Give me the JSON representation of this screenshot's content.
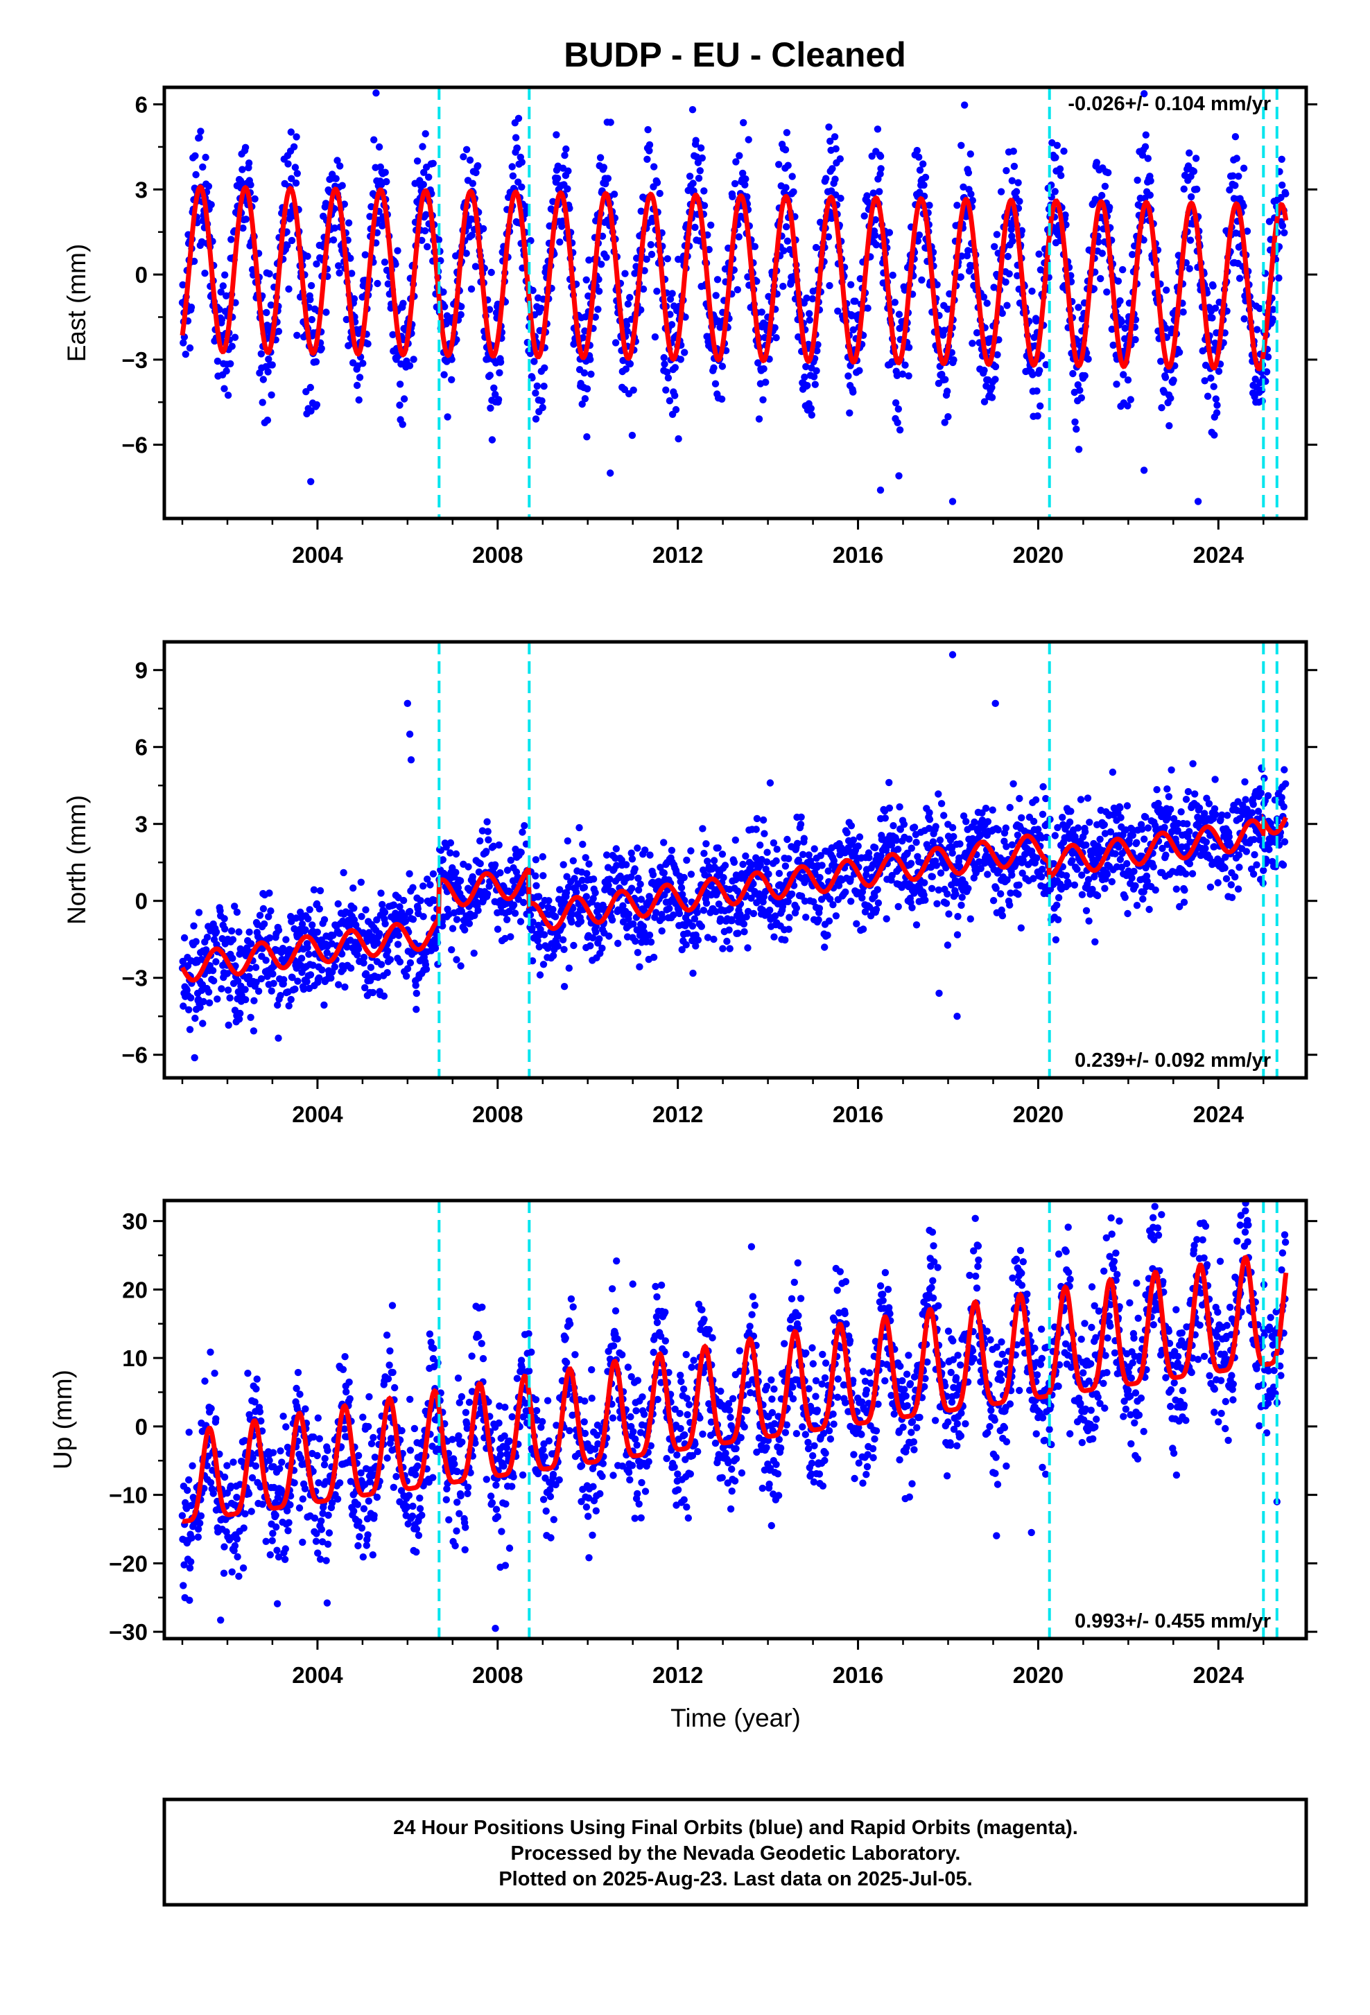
{
  "title": "BUDP  - EU - Cleaned",
  "x_axis_label": "Time (year)",
  "footer": [
    "24 Hour Positions Using Final Orbits (blue) and Rapid Orbits (magenta).",
    "Processed by the Nevada Geodetic Laboratory.",
    "Plotted on 2025-Aug-23. Last data on 2025-Jul-05."
  ],
  "colors": {
    "data_points": "#0000ff",
    "model_fit": "#ff0000",
    "breaks": "#00e5ee",
    "frame": "#000000"
  },
  "chart_data": [
    {
      "type": "scatter",
      "name": "east",
      "ylabel": "East (mm)",
      "rate_text": "-0.026+/- 0.104 mm/yr",
      "rate_position": "top-right",
      "xlim": [
        2000.6,
        2025.95
      ],
      "ylim": [
        -8.6,
        6.6
      ],
      "x_ticks": [
        "2004",
        "2008",
        "2012",
        "2016",
        "2020",
        "2024"
      ],
      "y_ticks": [
        "6",
        "3",
        "0",
        "-3",
        "-6"
      ],
      "y_tick_values": [
        6,
        3,
        0,
        -3,
        -6
      ],
      "break_years": [
        2006.7,
        2008.7,
        2020.25,
        2025.0,
        2025.3
      ],
      "data_span": [
        2001.0,
        2025.5
      ],
      "fit": {
        "annual_amplitude": 2.9,
        "annual_phase_peak": 0.4,
        "rate": -0.026,
        "offset": 0.2,
        "offsets": []
      },
      "scatter": {
        "sigma": 1.2,
        "seasonal_modulation": 1.0
      },
      "outliers": [
        [
          2003.85,
          -7.3
        ],
        [
          2010.5,
          -7.0
        ],
        [
          2018.1,
          -8.0
        ],
        [
          2023.55,
          -8.0
        ],
        [
          2005.3,
          6.4
        ],
        [
          2016.5,
          -7.6
        ],
        [
          2022.35,
          -6.9
        ]
      ]
    },
    {
      "type": "scatter",
      "name": "north",
      "ylabel": "North (mm)",
      "rate_text": "0.239+/- 0.092 mm/yr",
      "rate_position": "bottom-right",
      "xlim": [
        2000.6,
        2025.95
      ],
      "ylim": [
        -6.9,
        10.1
      ],
      "x_ticks": [
        "2004",
        "2008",
        "2012",
        "2016",
        "2020",
        "2024"
      ],
      "y_ticks": [
        "9",
        "6",
        "3",
        "0",
        "-3",
        "-6"
      ],
      "y_tick_values": [
        9,
        6,
        3,
        0,
        -3,
        -6
      ],
      "break_years": [
        2006.7,
        2008.7,
        2020.25,
        2025.0,
        2025.3
      ],
      "data_span": [
        2001.0,
        2025.5
      ],
      "fit": {
        "annual_amplitude": 0.55,
        "annual_phase_peak": 0.75,
        "rate": 0.239,
        "offset": -2.6,
        "offsets": [
          [
            2006.7,
            1.5
          ],
          [
            2008.7,
            -1.4
          ],
          [
            2020.25,
            -0.6
          ],
          [
            2025.0,
            0.5
          ]
        ]
      },
      "scatter": {
        "sigma": 1.0,
        "seasonal_modulation": 0.0
      },
      "outliers": [
        [
          2006.0,
          7.7
        ],
        [
          2006.05,
          6.5
        ],
        [
          2006.08,
          5.5
        ],
        [
          2018.1,
          9.6
        ],
        [
          2019.05,
          7.7
        ],
        [
          2014.05,
          4.6
        ],
        [
          2018.2,
          -4.5
        ],
        [
          2017.8,
          -3.6
        ]
      ]
    },
    {
      "type": "scatter",
      "name": "up",
      "ylabel": "Up (mm)",
      "rate_text": "0.993+/- 0.455 mm/yr",
      "rate_position": "bottom-right",
      "xlim": [
        2000.6,
        2025.95
      ],
      "ylim": [
        -31,
        33
      ],
      "x_ticks": [
        "2004",
        "2008",
        "2012",
        "2016",
        "2020",
        "2024"
      ],
      "y_ticks": [
        "30",
        "20",
        "10",
        "0",
        "-10",
        "-20",
        "-30"
      ],
      "y_tick_values": [
        30,
        20,
        10,
        0,
        -10,
        -20,
        -30
      ],
      "break_years": [
        2006.7,
        2008.7,
        2020.25,
        2025.0,
        2025.3
      ],
      "data_span": [
        2001.0,
        2025.5
      ],
      "fit": {
        "annual_amplitude": 6.5,
        "annual_phase_peak": 0.6,
        "rate": 0.993,
        "offset": -10.0,
        "offsets": [],
        "peaked": true
      },
      "scatter": {
        "sigma": 4.5,
        "seasonal_modulation": 0.0
      },
      "outliers": [
        [
          2007.95,
          -29.5
        ],
        [
          2001.85,
          -28.3
        ],
        [
          2024.6,
          31.5
        ],
        [
          2011.0,
          20.8
        ],
        [
          2021.8,
          30.0
        ],
        [
          2022.55,
          30.5
        ],
        [
          2025.3,
          -11.0
        ],
        [
          2019.85,
          -15.5
        ]
      ]
    }
  ]
}
